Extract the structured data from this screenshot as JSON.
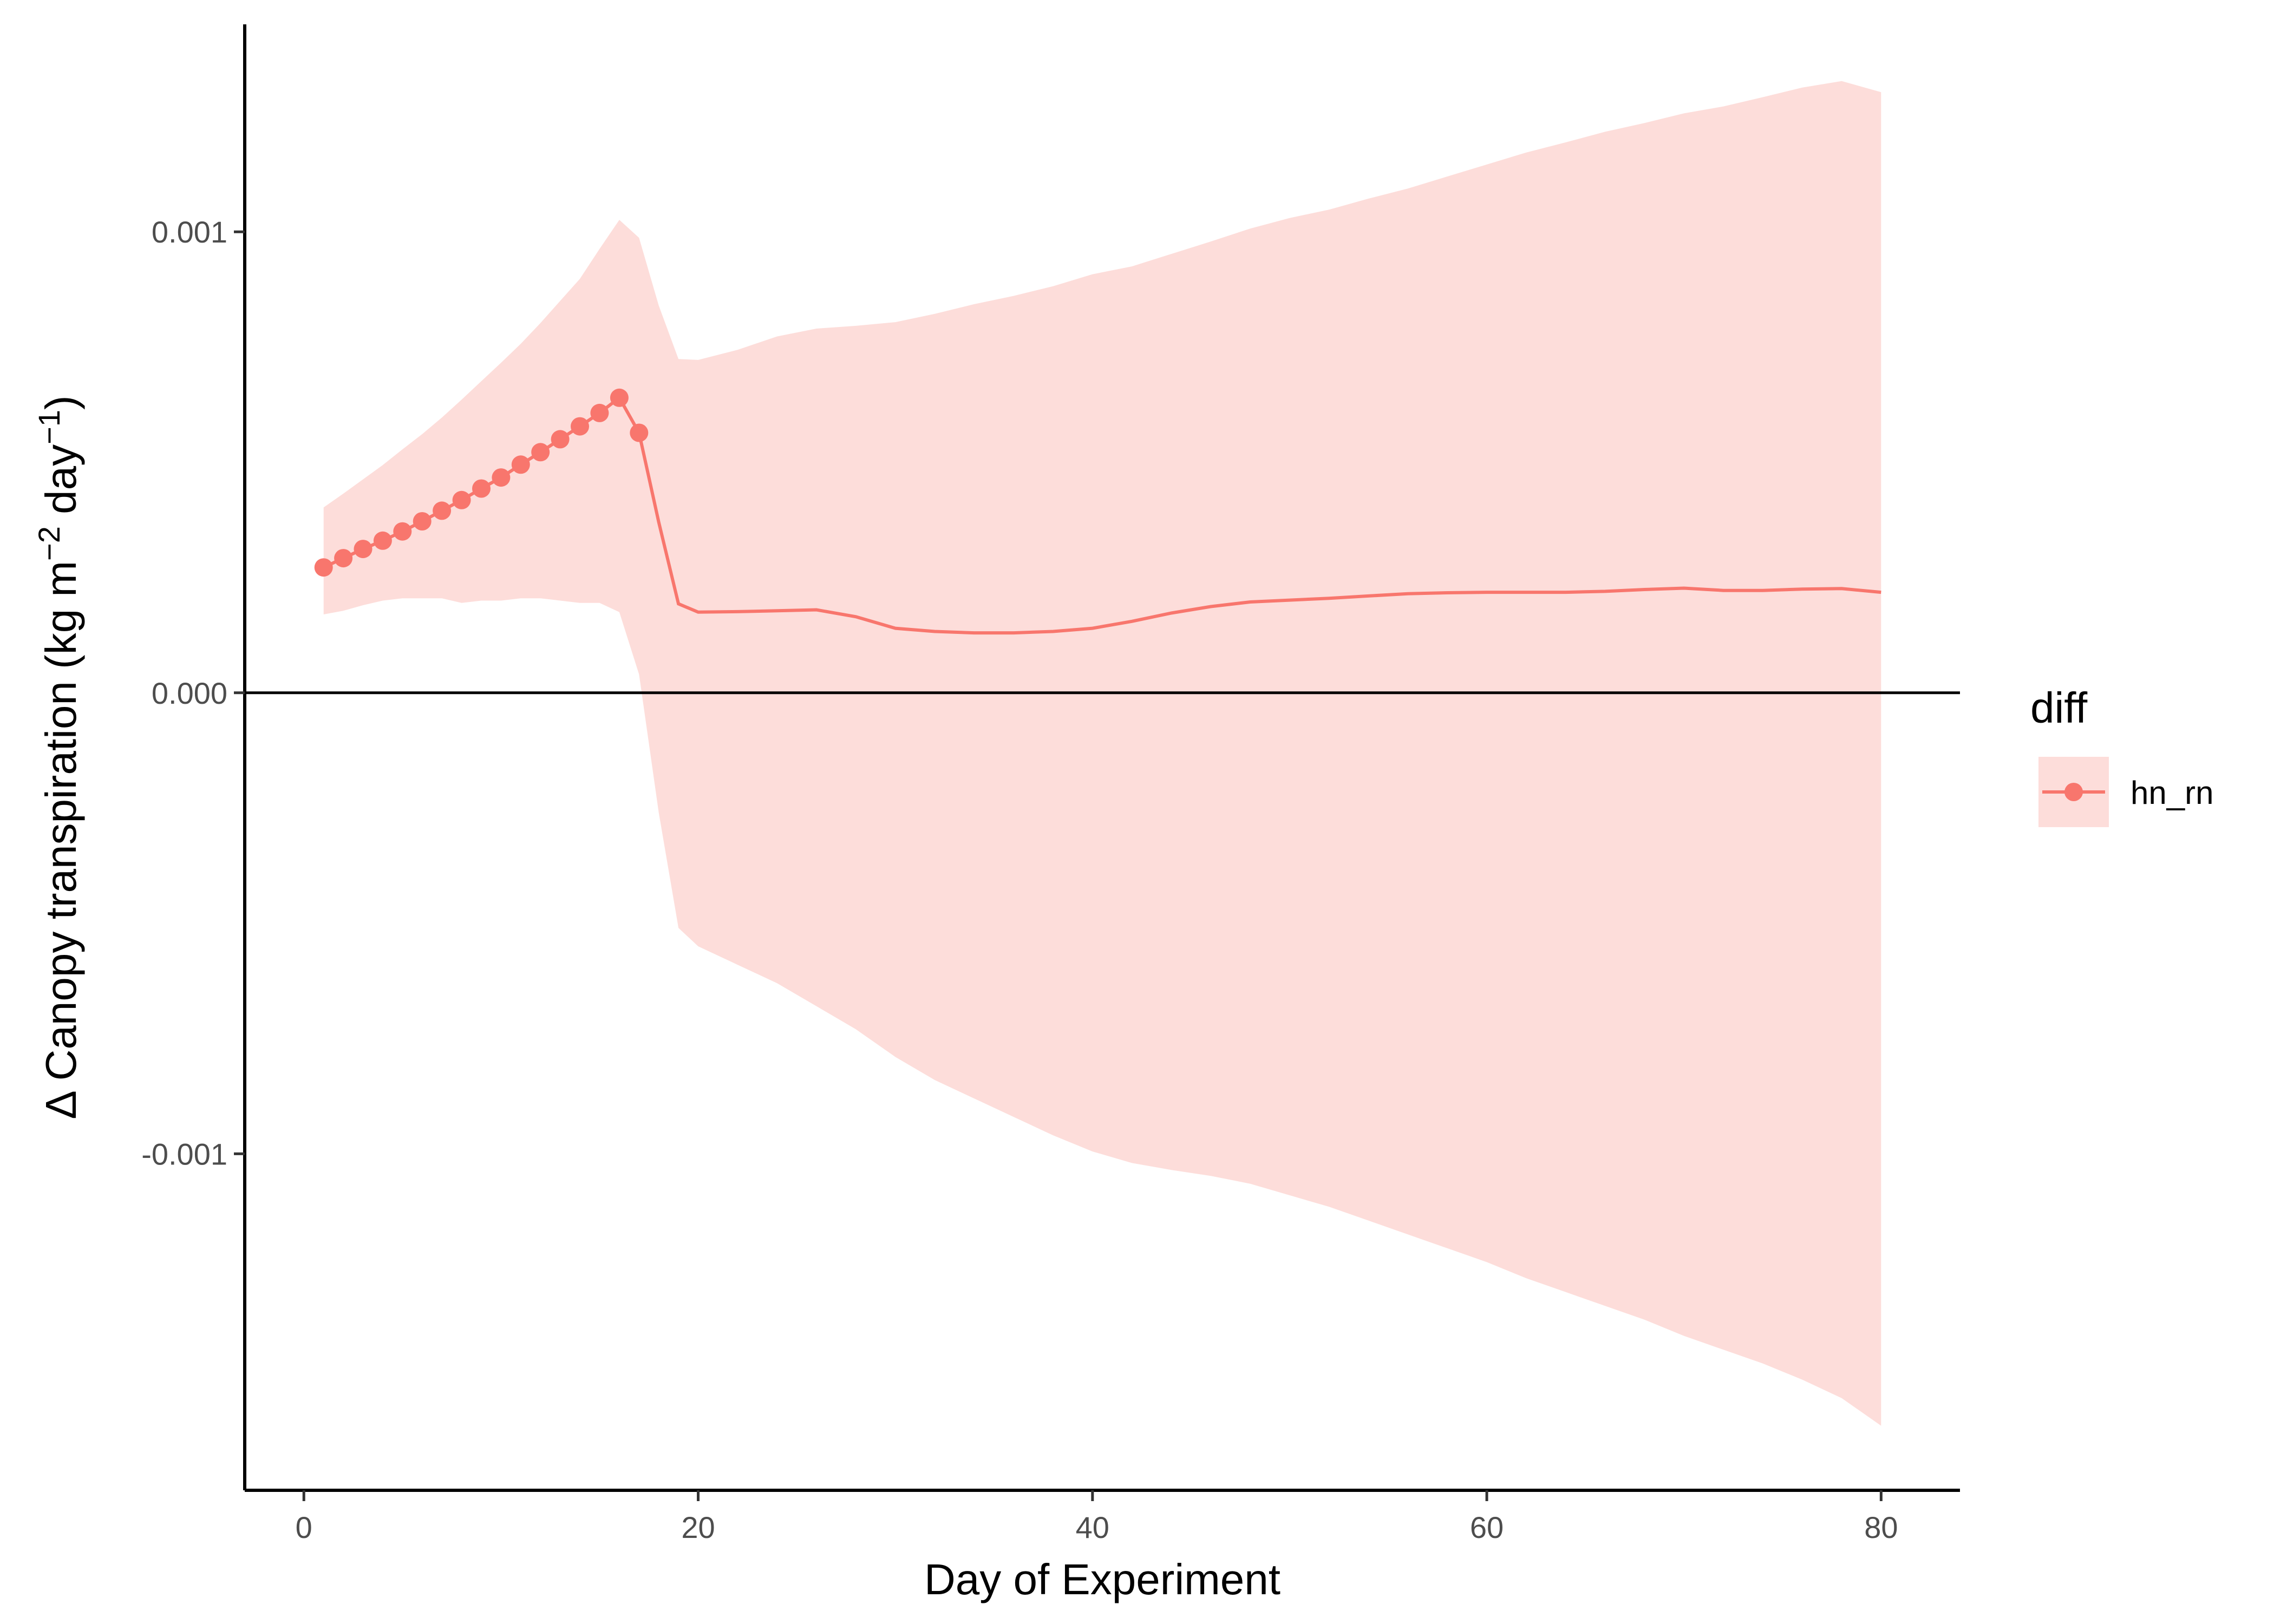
{
  "chart_data": {
    "type": "line",
    "title": "",
    "xlabel": "Day of Experiment",
    "ylabel": {
      "prefix": "Δ Canopy transpiration (kg m",
      "sup1": "−2",
      "mid": " day",
      "sup2": "−1",
      "suffix": ")"
    },
    "xlim": [
      -3,
      84
    ],
    "ylim": [
      -0.00173,
      0.00145
    ],
    "x_ticks": [
      0,
      20,
      40,
      60,
      80
    ],
    "x_tick_labels": [
      "0",
      "20",
      "40",
      "60",
      "80"
    ],
    "y_ticks": [
      -0.001,
      0.0,
      0.001
    ],
    "y_tick_labels": [
      "-0.001",
      "0.000",
      "0.001"
    ],
    "reference_line": {
      "y": 0
    },
    "grid": false,
    "legend": {
      "position": "right",
      "title": "diff",
      "entries": [
        "hn_rn"
      ]
    },
    "colors": {
      "line": "#F8766D",
      "ribbon": "#F8766D",
      "ribbon_opacity": 0.25,
      "axis": "#000000"
    },
    "series": [
      {
        "name": "hn_rn",
        "x": [
          1,
          2,
          3,
          4,
          5,
          6,
          7,
          8,
          9,
          10,
          11,
          12,
          13,
          14,
          15,
          16,
          17,
          18,
          19,
          20,
          22,
          24,
          26,
          28,
          30,
          32,
          34,
          36,
          38,
          40,
          42,
          44,
          46,
          48,
          50,
          52,
          54,
          56,
          58,
          60,
          62,
          64,
          66,
          68,
          70,
          72,
          74,
          76,
          78,
          80
        ],
        "y": [
          0.000272,
          0.000292,
          0.000312,
          0.00033,
          0.00035,
          0.000372,
          0.000395,
          0.000418,
          0.000443,
          0.000467,
          0.000495,
          0.000522,
          0.00055,
          0.000578,
          0.000607,
          0.00064,
          0.000564,
          0.00037,
          0.000193,
          0.000175,
          0.000176,
          0.000178,
          0.00018,
          0.000165,
          0.00014,
          0.000133,
          0.00013,
          0.00013,
          0.000133,
          0.00014,
          0.000155,
          0.000173,
          0.000187,
          0.000197,
          0.000201,
          0.000205,
          0.00021,
          0.000215,
          0.000217,
          0.000218,
          0.000218,
          0.000218,
          0.00022,
          0.000224,
          0.000227,
          0.000222,
          0.000222,
          0.000225,
          0.000226,
          0.000218
        ],
        "markers_x": [
          1,
          2,
          3,
          4,
          5,
          6,
          7,
          8,
          9,
          10,
          11,
          12,
          13,
          14,
          15,
          16,
          17
        ],
        "markers_y": [
          0.000272,
          0.000292,
          0.000312,
          0.00033,
          0.00035,
          0.000372,
          0.000395,
          0.000418,
          0.000443,
          0.000467,
          0.000495,
          0.000522,
          0.00055,
          0.000578,
          0.000607,
          0.00064,
          0.000564
        ],
        "ribbon_upper": [
          0.000402,
          0.000432,
          0.000463,
          0.000494,
          0.000528,
          0.000561,
          0.000597,
          0.000636,
          0.000676,
          0.000716,
          0.000757,
          0.000802,
          0.00085,
          0.000898,
          0.000963,
          0.001026,
          0.000987,
          0.00084,
          0.000724,
          0.000722,
          0.000744,
          0.000773,
          0.00079,
          0.000796,
          0.000804,
          0.000822,
          0.000843,
          0.000861,
          0.000882,
          0.000908,
          0.000925,
          0.000952,
          0.000979,
          0.001007,
          0.00103,
          0.001048,
          0.001072,
          0.001094,
          0.00112,
          0.001146,
          0.001172,
          0.001194,
          0.001217,
          0.001236,
          0.001257,
          0.001272,
          0.001292,
          0.001313,
          0.001327,
          0.001303
        ],
        "ribbon_lower": [
          0.00017,
          0.000178,
          0.00019,
          0.0002,
          0.000205,
          0.000205,
          0.000205,
          0.000195,
          0.0002,
          0.0002,
          0.000205,
          0.000205,
          0.0002,
          0.000195,
          0.000195,
          0.000175,
          4e-05,
          -0.00026,
          -0.00051,
          -0.00055,
          -0.00059,
          -0.00063,
          -0.00068,
          -0.00073,
          -0.00079,
          -0.00084,
          -0.00088,
          -0.00092,
          -0.00096,
          -0.000995,
          -0.00102,
          -0.001035,
          -0.001048,
          -0.001065,
          -0.00109,
          -0.001115,
          -0.001145,
          -0.001175,
          -0.001205,
          -0.001235,
          -0.00127,
          -0.0013,
          -0.00133,
          -0.00136,
          -0.001395,
          -0.001425,
          -0.001455,
          -0.00149,
          -0.00153,
          -0.00159
        ]
      }
    ]
  }
}
